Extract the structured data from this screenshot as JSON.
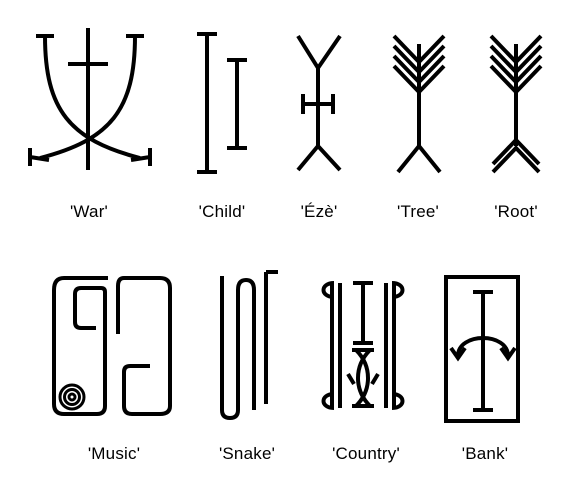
{
  "row1": [
    {
      "key": "war",
      "label": "'War'"
    },
    {
      "key": "child",
      "label": "'Child'"
    },
    {
      "key": "eze",
      "label": "'Ézè'"
    },
    {
      "key": "tree",
      "label": "'Tree'"
    },
    {
      "key": "root",
      "label": "'Root'"
    }
  ],
  "row2": [
    {
      "key": "music",
      "label": "'Music'"
    },
    {
      "key": "snake",
      "label": "'Snake'"
    },
    {
      "key": "country",
      "label": "'Country'"
    },
    {
      "key": "bank",
      "label": "'Bank'"
    }
  ],
  "colors": {
    "ink": "#000000",
    "background": "#ffffff"
  }
}
